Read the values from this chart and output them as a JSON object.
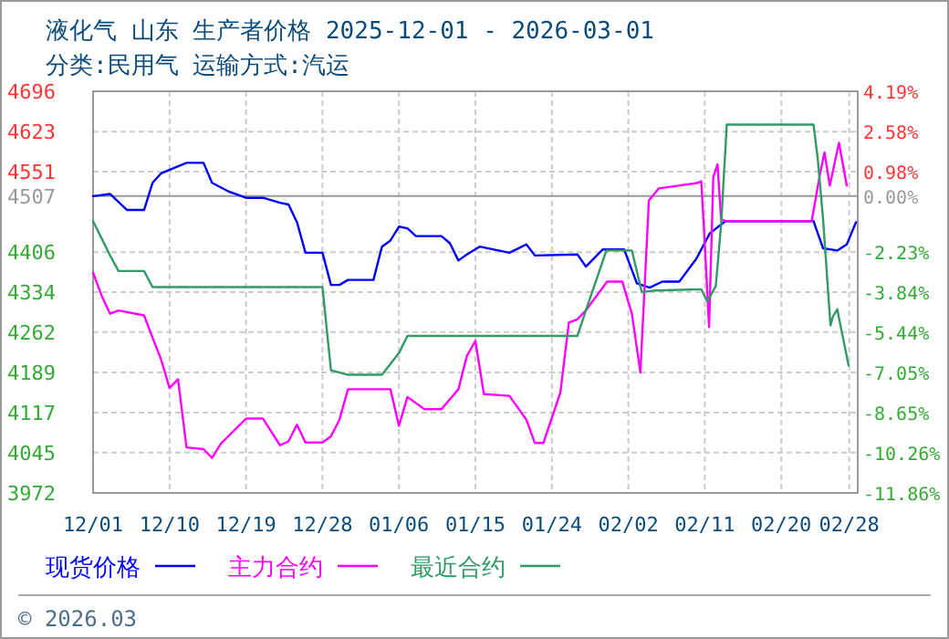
{
  "chart_data": {
    "type": "line",
    "title": "液化气 山东 生产者价格 2025-12-01 - 2026-03-01",
    "subtitle": "分类:民用气 运输方式:汽运",
    "annotations": [
      "© 2026.03"
    ],
    "xlim": [
      "2025-12-01",
      "2026-03-01"
    ],
    "xticks": [
      {
        "value": "2025-12-01",
        "label": "12/01"
      },
      {
        "value": "2025-12-10",
        "label": "12/10"
      },
      {
        "value": "2025-12-19",
        "label": "12/19"
      },
      {
        "value": "2025-12-28",
        "label": "12/28"
      },
      {
        "value": "2026-01-06",
        "label": "01/06"
      },
      {
        "value": "2026-01-15",
        "label": "01/15"
      },
      {
        "value": "2026-01-24",
        "label": "01/24"
      },
      {
        "value": "2026-02-02",
        "label": "02/02"
      },
      {
        "value": "2026-02-11",
        "label": "02/11"
      },
      {
        "value": "2026-02-20",
        "label": "02/20"
      },
      {
        "value": "2026-02-28",
        "label": "02/28"
      }
    ],
    "ylim": [
      3972,
      4696
    ],
    "yticks": [
      3972,
      4045,
      4117,
      4189,
      4262,
      4334,
      4406,
      4507,
      4551,
      4623,
      4696
    ],
    "y2lim": [
      -11.86,
      4.19
    ],
    "y2ticks": [
      {
        "value": -11.86,
        "label": "-11.86%"
      },
      {
        "value": -10.26,
        "label": "-10.26%"
      },
      {
        "value": -8.65,
        "label": "-8.65%"
      },
      {
        "value": -7.05,
        "label": "-7.05%"
      },
      {
        "value": -5.44,
        "label": "-5.44%"
      },
      {
        "value": -3.84,
        "label": "-3.84%"
      },
      {
        "value": -2.23,
        "label": "-2.23%"
      },
      {
        "value": 0,
        "label": "0.00%"
      },
      {
        "value": 0.98,
        "label": "0.98%"
      },
      {
        "value": 2.58,
        "label": "2.58%"
      },
      {
        "value": 4.19,
        "label": "4.19%"
      }
    ],
    "ref_lines": [
      {
        "axis": "y",
        "value": 4507,
        "color": "#999999"
      }
    ],
    "grid": true,
    "legend": "bottom",
    "series": [
      {
        "name": "现货价格",
        "color": "#0000ff",
        "x": [
          "2025-12-01",
          "2025-12-03",
          "2025-12-05",
          "2025-12-07",
          "2025-12-08",
          "2025-12-09",
          "2025-12-12",
          "2025-12-14",
          "2025-12-15",
          "2025-12-17",
          "2025-12-19",
          "2025-12-21",
          "2025-12-23",
          "2025-12-24",
          "2025-12-25",
          "2025-12-26",
          "2025-12-28",
          "2025-12-29",
          "2025-12-30",
          "2025-12-31",
          "2026-01-03",
          "2026-01-04",
          "2026-01-05",
          "2026-01-06",
          "2026-01-07",
          "2026-01-08",
          "2026-01-11",
          "2026-01-12",
          "2026-01-13",
          "2026-01-14",
          "2026-01-15T12:00",
          "2026-01-19",
          "2026-01-21",
          "2026-01-22",
          "2026-01-27",
          "2026-01-28",
          "2026-01-30",
          "2026-02-01T12:00",
          "2026-02-03",
          "2026-02-04T12:00",
          "2026-02-06",
          "2026-02-08",
          "2026-02-10",
          "2026-02-11T14:00",
          "2026-02-13T10:00",
          "2026-02-23T19:00",
          "2026-02-24T22:00",
          "2026-02-26T14:00",
          "2026-02-27T17:00",
          "2026-02-28T19:00"
        ],
        "values": [
          4507,
          4511,
          4482,
          4482,
          4531,
          4548,
          4567,
          4567,
          4531,
          4515,
          4504,
          4504,
          4495,
          4492,
          4460,
          4405,
          4405,
          4347,
          4347,
          4356,
          4356,
          4416,
          4427,
          4452,
          4449,
          4435,
          4435,
          4422,
          4391,
          4402,
          4416,
          4405,
          4420,
          4400,
          4402,
          4380,
          4411,
          4411,
          4350,
          4342,
          4353,
          4353,
          4394,
          4440,
          4462,
          4462,
          4413,
          4409,
          4420,
          4460
        ]
      },
      {
        "name": "主力合约",
        "color": "#ff00ff",
        "x": [
          "2025-12-01",
          "2025-12-02",
          "2025-12-03",
          "2025-12-04",
          "2025-12-07",
          "2025-12-08",
          "2025-12-09",
          "2025-12-10",
          "2025-12-11",
          "2025-12-12",
          "2025-12-14",
          "2025-12-15",
          "2025-12-16",
          "2025-12-19",
          "2025-12-21",
          "2025-12-23",
          "2025-12-24",
          "2025-12-25",
          "2025-12-26",
          "2025-12-28",
          "2025-12-29",
          "2025-12-30",
          "2025-12-31",
          "2026-01-05",
          "2026-01-06",
          "2026-01-07",
          "2026-01-09",
          "2026-01-11",
          "2026-01-13",
          "2026-01-14",
          "2026-01-15",
          "2026-01-16",
          "2026-01-19",
          "2026-01-21",
          "2026-01-22",
          "2026-01-23",
          "2026-01-25",
          "2026-01-26",
          "2026-01-27",
          "2026-01-28",
          "2026-01-30T12:00",
          "2026-02-01T07:00",
          "2026-02-02T10:00",
          "2026-02-03T10:00",
          "2026-02-04T10:00",
          "2026-02-05T14:00",
          "2026-02-10T05:00",
          "2026-02-10T14:00",
          "2026-02-10T22:00",
          "2026-02-11T12:00",
          "2026-02-12",
          "2026-02-12T12:00",
          "2026-02-12T22:00",
          "2026-02-13T10:00",
          "2026-02-23T14:00",
          "2026-02-24T12:00",
          "2026-02-25T02:00",
          "2026-02-25T17:00",
          "2026-02-26T19:00",
          "2026-02-27T17:00"
        ],
        "values": [
          4369,
          4328,
          4295,
          4301,
          4292,
          4252,
          4213,
          4161,
          4177,
          4054,
          4051,
          4035,
          4060,
          4106,
          4106,
          4058,
          4065,
          4095,
          4063,
          4063,
          4074,
          4104,
          4159,
          4159,
          4093,
          4145,
          4123,
          4123,
          4159,
          4219,
          4246,
          4150,
          4147,
          4104,
          4062,
          4062,
          4153,
          4279,
          4285,
          4301,
          4353,
          4353,
          4295,
          4189,
          4499,
          4521,
          4531,
          4534,
          4444,
          4271,
          4542,
          4564,
          4466,
          4462,
          4462,
          4542,
          4586,
          4526,
          4603,
          4526
        ]
      },
      {
        "name": "最近合约",
        "color": "#339966",
        "x": [
          "2025-12-01",
          "2025-12-03",
          "2025-12-04",
          "2025-12-07",
          "2025-12-08",
          "2025-12-28",
          "2025-12-29",
          "2025-12-31",
          "2026-01-04",
          "2026-01-06",
          "2026-01-07",
          "2026-01-27",
          "2026-01-28",
          "2026-01-30T10:00",
          "2026-02-02T10:00",
          "2026-02-03T14:00",
          "2026-02-05T05:00",
          "2026-02-10T14:00",
          "2026-02-11T07:00",
          "2026-02-12T07:00",
          "2026-02-12T22:00",
          "2026-02-13T14:00",
          "2026-02-23T19:00",
          "2026-02-24T07:00",
          "2026-02-24T22:00",
          "2026-02-25T19:00",
          "2026-02-26T02:00",
          "2026-02-26T14:00",
          "2026-02-27T22:00"
        ],
        "values": [
          4462,
          4400,
          4372,
          4372,
          4343,
          4343,
          4193,
          4185,
          4185,
          4224,
          4255,
          4255,
          4301,
          4409,
          4409,
          4334,
          4337,
          4339,
          4317,
          4345,
          4455,
          4636,
          4636,
          4575,
          4466,
          4274,
          4290,
          4303,
          4202
        ]
      }
    ]
  }
}
